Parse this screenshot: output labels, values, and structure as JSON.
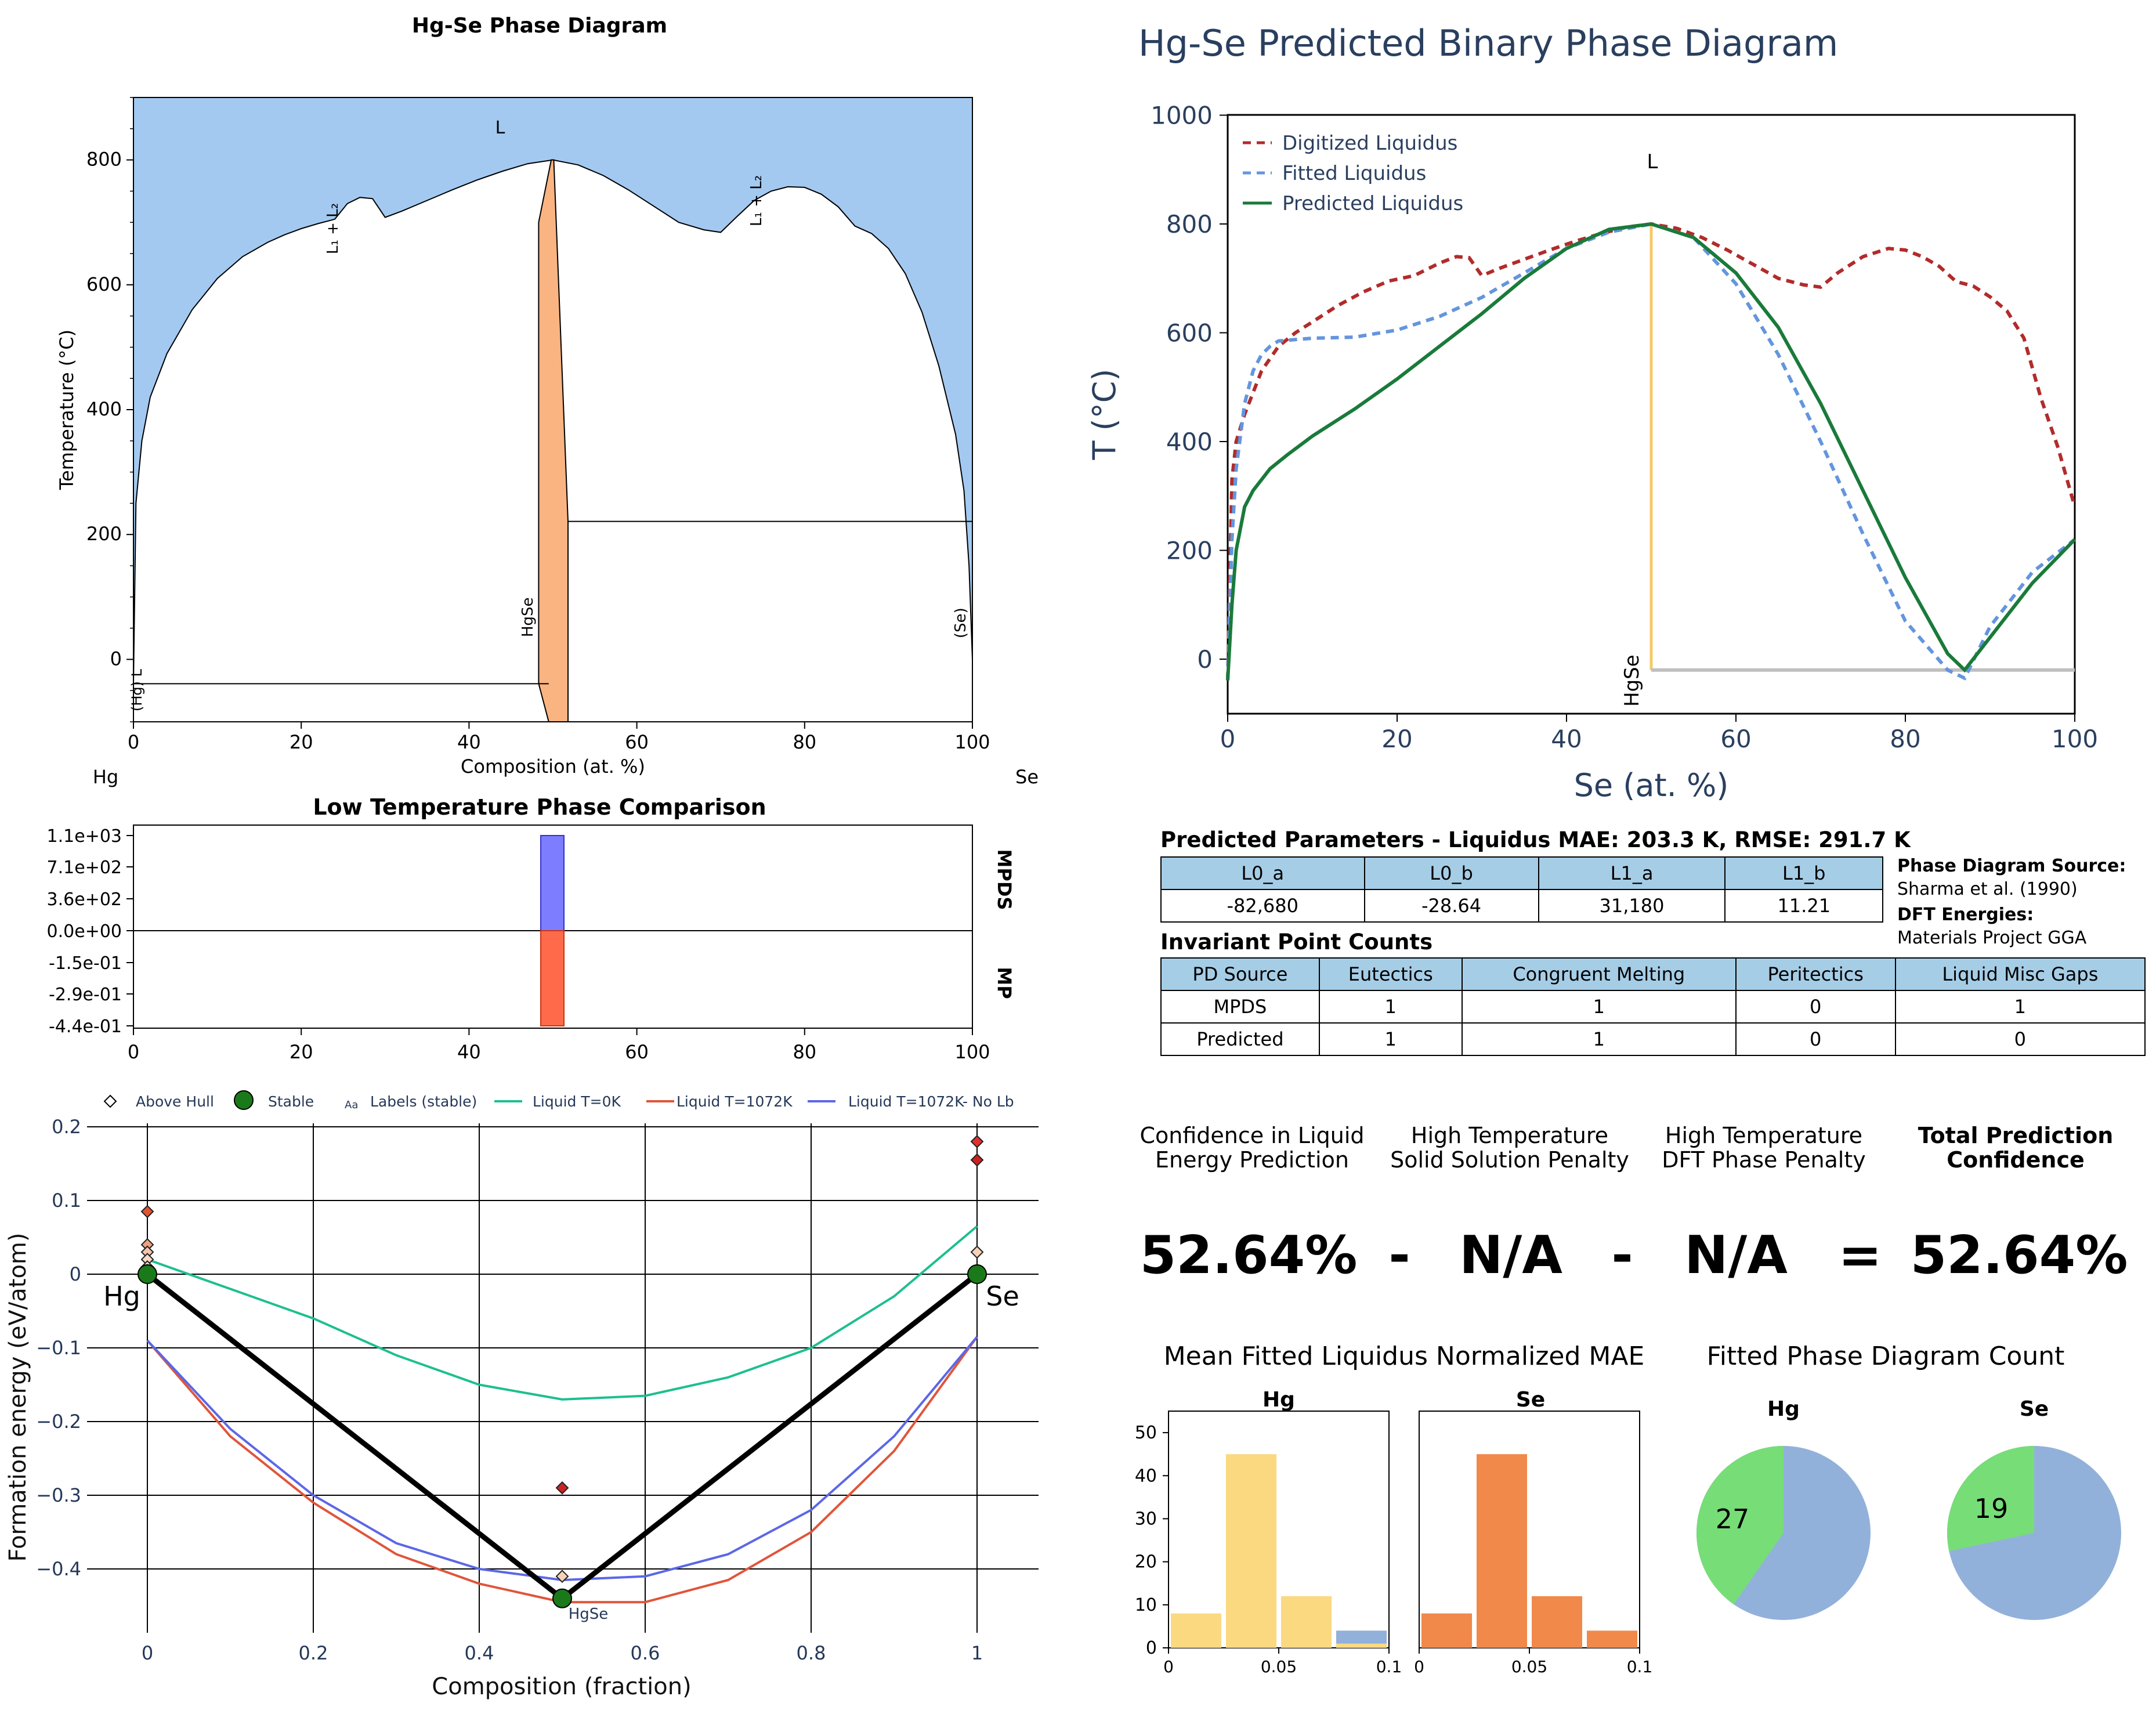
{
  "phase_diagram": {
    "title": "Hg-Se Phase Diagram",
    "xlabel": "Composition (at. %)",
    "ylabel": "Temperature (°C)",
    "left_element": "Hg",
    "right_element": "Se",
    "xticks": [
      "0",
      "20",
      "40",
      "60",
      "80",
      "100"
    ],
    "yticks": [
      "0",
      "200",
      "400",
      "600",
      "800"
    ],
    "labels": {
      "liquid": "L",
      "l1l2_left": "L₁ + L₂",
      "l1l2_right": "L₁ + L₂",
      "hgse": "HgSe",
      "se": "(Se)",
      "hg": "(Hg) L"
    },
    "colors": {
      "liquid": "#a3c9f1",
      "compound": "#f9b482"
    }
  },
  "predicted": {
    "title": "Hg-Se Predicted Binary Phase Diagram",
    "xlabel": "Se (at. %)",
    "ylabel": "T (°C)",
    "legend": [
      "Digitized Liquidus",
      "Fitted Liquidus",
      "Predicted Liquidus"
    ],
    "liquid_label": "L",
    "compound_label": "HgSe",
    "xticks": [
      "0",
      "20",
      "40",
      "60",
      "80",
      "100"
    ],
    "yticks": [
      "0",
      "200",
      "400",
      "600",
      "800",
      "1000"
    ],
    "colors": {
      "digitized": "#b22b2b",
      "fitted": "#6495de",
      "predicted": "#1a7a3a",
      "compound": "#f5c96a",
      "eutectic": "#bfbfbf"
    }
  },
  "low_temp": {
    "title": "Low Temperature Phase Comparison",
    "yticks": [
      "1.1e+03",
      "7.1e+02",
      "3.6e+02",
      "0.0e+00",
      "-1.5e-01",
      "-2.9e-01",
      "-4.4e-01"
    ],
    "xticks": [
      "0",
      "20",
      "40",
      "60",
      "80",
      "100"
    ],
    "right_labels": [
      "MPDS",
      "MP"
    ]
  },
  "hull": {
    "legend": [
      "Above Hull",
      "Stable",
      "Labels (stable)",
      "Liquid T=0K",
      "Liquid T=1072K",
      "Liquid T=1072K- No Lb"
    ],
    "legend_icon_text": "Aa",
    "xlabel": "Composition (fraction)",
    "ylabel": "Formation energy (eV/atom)",
    "xticks": [
      "0",
      "0.2",
      "0.4",
      "0.6",
      "0.8",
      "1"
    ],
    "yticks": [
      "0.2",
      "0.1",
      "0",
      "−0.1",
      "−0.2",
      "−0.3",
      "−0.4"
    ],
    "element_labels": [
      "Hg",
      "Se"
    ],
    "compound_label": "HgSe"
  },
  "params": {
    "title": "Predicted Parameters - Liquidus MAE: 203.3 K, RMSE: 291.7 K",
    "headers": [
      "L0_a",
      "L0_b",
      "L1_a",
      "L1_b"
    ],
    "values": [
      "-82,680",
      "-28.64",
      "31,180",
      "11.21"
    ],
    "source_label": "Phase Diagram Source:",
    "source_value": "Sharma et al. (1990)",
    "dft_label": "DFT Energies:",
    "dft_value": "Materials Project GGA"
  },
  "invariants": {
    "title": "Invariant Point Counts",
    "headers": [
      "PD Source",
      "Eutectics",
      "Congruent Melting",
      "Peritectics",
      "Liquid Misc Gaps"
    ],
    "rows": [
      [
        "MPDS",
        "1",
        "1",
        "0",
        "1"
      ],
      [
        "Predicted",
        "1",
        "1",
        "0",
        "0"
      ]
    ]
  },
  "confidence": {
    "c1_l1": "Confidence in Liquid",
    "c1_l2": "Energy Prediction",
    "c2_l1": "High Temperature",
    "c2_l2": "Solid Solution Penalty",
    "c3_l1": "High Temperature",
    "c3_l2": "DFT Phase Penalty",
    "c4_l1": "Total Prediction",
    "c4_l2": "Confidence",
    "v1": "52.64%",
    "op1": "-",
    "v2": "N/A",
    "op2": "-",
    "v3": "N/A",
    "op3": "=",
    "v4": "52.64%"
  },
  "mae_hist": {
    "title": "Mean Fitted Liquidus Normalized MAE",
    "panels": [
      "Hg",
      "Se"
    ],
    "yticks": [
      "0",
      "10",
      "20",
      "30",
      "40",
      "50"
    ],
    "xticks": [
      "0",
      "0.05",
      "0.1"
    ],
    "colors": {
      "hg": "#fad981",
      "se": "#f0894a",
      "other": "#91b0da"
    }
  },
  "pie": {
    "title": "Fitted Phase Diagram Count",
    "panels": [
      "Hg",
      "Se"
    ],
    "labels": [
      "27",
      "19"
    ],
    "colors": {
      "green": "#77dd77",
      "blue": "#92b1da"
    }
  },
  "chart_data": [
    {
      "type": "area",
      "title": "Hg-Se Phase Diagram",
      "xlabel": "Composition (at. %)",
      "ylabel": "Temperature (°C)",
      "xlim": [
        0,
        100
      ],
      "ylim": [
        -100,
        900
      ],
      "series": [
        {
          "name": "liquidus",
          "x": [
            0,
            0.3,
            1,
            2,
            4,
            7,
            10,
            13,
            16,
            18,
            20,
            22,
            24,
            25.5,
            27,
            28.5,
            30,
            32,
            35,
            38,
            41,
            44,
            47,
            50,
            53,
            56,
            59,
            62,
            65,
            68,
            70,
            72,
            74,
            76,
            78,
            80,
            82,
            84,
            86,
            87,
            88,
            90,
            92,
            94,
            96,
            98,
            99,
            99.6,
            100
          ],
          "y": [
            -39,
            250,
            350,
            420,
            490,
            560,
            610,
            645,
            668,
            680,
            690,
            698,
            705,
            730,
            740,
            738,
            708,
            718,
            735,
            752,
            768,
            782,
            794,
            800,
            792,
            775,
            752,
            726,
            700,
            688,
            684,
            710,
            735,
            750,
            757,
            756,
            745,
            725,
            694,
            688,
            682,
            658,
            618,
            556,
            470,
            360,
            270,
            150,
            0
          ]
        },
        {
          "name": "HgSe compound",
          "x": [
            48.3,
            49.7,
            50,
            51.7
          ],
          "y": [
            700,
            800,
            800,
            220
          ]
        },
        {
          "name": "eutectic (Hg side)",
          "x": [
            0,
            49.5
          ],
          "y": [
            -39,
            -39
          ]
        },
        {
          "name": "eutectic (Se side)",
          "x": [
            51,
            100
          ],
          "y": [
            221,
            221
          ]
        }
      ]
    },
    {
      "type": "line",
      "title": "Hg-Se Predicted Binary Phase Diagram",
      "xlabel": "Se (at. %)",
      "ylabel": "T (°C)",
      "xlim": [
        0,
        100
      ],
      "ylim": [
        -100,
        1000
      ],
      "series": [
        {
          "name": "Digitized Liquidus",
          "x": [
            0,
            0.5,
            1,
            2,
            4,
            6,
            8,
            10,
            13,
            16,
            19,
            22,
            25,
            27,
            28.5,
            30,
            32,
            35,
            38,
            41,
            44,
            47,
            50,
            53,
            56,
            59,
            62,
            65,
            68,
            70,
            72,
            75,
            78,
            80,
            82,
            84,
            86,
            88,
            90,
            92,
            94,
            96,
            98,
            100
          ],
          "y": [
            -39,
            330,
            400,
            450,
            530,
            575,
            600,
            620,
            650,
            675,
            695,
            705,
            728,
            740,
            738,
            705,
            718,
            735,
            752,
            768,
            782,
            794,
            800,
            792,
            775,
            752,
            726,
            700,
            688,
            684,
            710,
            740,
            755,
            752,
            740,
            722,
            694,
            686,
            666,
            640,
            590,
            480,
            390,
            280
          ]
        },
        {
          "name": "Fitted Liquidus",
          "x": [
            0,
            0.5,
            1,
            2,
            3,
            4,
            5,
            6,
            10,
            15,
            20,
            25,
            30,
            35,
            40,
            45,
            50,
            55,
            60,
            65,
            70,
            75,
            80,
            85,
            87,
            90,
            95,
            100
          ],
          "y": [
            -39,
            220,
            350,
            470,
            530,
            560,
            575,
            585,
            590,
            592,
            605,
            630,
            665,
            710,
            755,
            785,
            800,
            775,
            690,
            560,
            400,
            230,
            70,
            -20,
            -35,
            60,
            160,
            220
          ]
        },
        {
          "name": "Predicted Liquidus",
          "x": [
            0,
            0.5,
            1,
            2,
            3,
            5,
            7,
            10,
            15,
            20,
            25,
            30,
            35,
            40,
            45,
            50,
            55,
            60,
            65,
            70,
            75,
            80,
            85,
            87,
            90,
            95,
            100
          ],
          "y": [
            -39,
            100,
            200,
            280,
            310,
            350,
            375,
            410,
            460,
            515,
            575,
            635,
            700,
            755,
            790,
            800,
            775,
            710,
            610,
            470,
            310,
            150,
            10,
            -20,
            40,
            140,
            220
          ]
        },
        {
          "name": "HgSe",
          "x": [
            50,
            50
          ],
          "y": [
            -20,
            800
          ]
        },
        {
          "name": "eutectic",
          "x": [
            50,
            100
          ],
          "y": [
            -20,
            -20
          ]
        }
      ]
    },
    {
      "type": "bar",
      "title": "Low Temperature Phase Comparison",
      "categories": [
        "MPDS",
        "MP"
      ],
      "x": [
        50,
        50
      ],
      "values": [
        1100,
        -0.44
      ],
      "xlim": [
        0,
        100
      ]
    },
    {
      "type": "line",
      "xlabel": "Composition (fraction)",
      "ylabel": "Formation energy (eV/atom)",
      "xlim": [
        -0.02,
        1.02
      ],
      "ylim": [
        -0.46,
        0.22
      ],
      "series": [
        {
          "name": "Liquid T=0K",
          "x": [
            0,
            0.1,
            0.2,
            0.3,
            0.4,
            0.5,
            0.6,
            0.7,
            0.8,
            0.9,
            1
          ],
          "y": [
            0.02,
            -0.02,
            -0.06,
            -0.11,
            -0.15,
            -0.17,
            -0.165,
            -0.14,
            -0.1,
            -0.03,
            0.065
          ]
        },
        {
          "name": "Liquid T=1072K",
          "x": [
            0,
            0.1,
            0.2,
            0.3,
            0.4,
            0.5,
            0.6,
            0.7,
            0.8,
            0.9,
            1
          ],
          "y": [
            -0.09,
            -0.22,
            -0.31,
            -0.38,
            -0.42,
            -0.445,
            -0.445,
            -0.415,
            -0.35,
            -0.24,
            -0.085
          ]
        },
        {
          "name": "Liquid T=1072K- No Lb",
          "x": [
            0,
            0.1,
            0.2,
            0.3,
            0.4,
            0.5,
            0.6,
            0.7,
            0.8,
            0.9,
            1
          ],
          "y": [
            -0.09,
            -0.21,
            -0.3,
            -0.365,
            -0.4,
            -0.415,
            -0.41,
            -0.38,
            -0.32,
            -0.22,
            -0.085
          ]
        },
        {
          "name": "Hull",
          "x": [
            0,
            0.5,
            1
          ],
          "y": [
            0,
            -0.44,
            0
          ]
        },
        {
          "name": "Stable",
          "x": [
            0,
            0.5,
            1
          ],
          "y": [
            0,
            -0.44,
            0
          ]
        },
        {
          "name": "Above Hull",
          "x": [
            0,
            0,
            0,
            0,
            0,
            0,
            0.5,
            0.5,
            1,
            1,
            1
          ],
          "y": [
            0.085,
            0.04,
            0.03,
            0.02,
            0.01,
            0.005,
            -0.29,
            -0.41,
            0.18,
            0.155,
            0.03
          ]
        }
      ]
    },
    {
      "type": "bar",
      "title": "Mean Fitted Liquidus Normalized MAE",
      "subplots": [
        "Hg",
        "Se"
      ],
      "x": [
        0.0125,
        0.0375,
        0.0625,
        0.0875
      ],
      "series": [
        {
          "name": "Hg",
          "values": [
            8,
            45,
            12,
            1
          ]
        },
        {
          "name": "Se",
          "values": [
            8,
            45,
            12,
            4
          ]
        },
        {
          "name": "other",
          "values": [
            0,
            0,
            0,
            4
          ]
        }
      ],
      "xlim": [
        0,
        0.1
      ],
      "ylim": [
        0,
        55
      ]
    },
    {
      "type": "pie",
      "title": "Fitted Phase Diagram Count",
      "subplots": [
        {
          "name": "Hg",
          "values": [
            27,
            40
          ]
        },
        {
          "name": "Se",
          "values": [
            19,
            48
          ]
        }
      ]
    }
  ]
}
